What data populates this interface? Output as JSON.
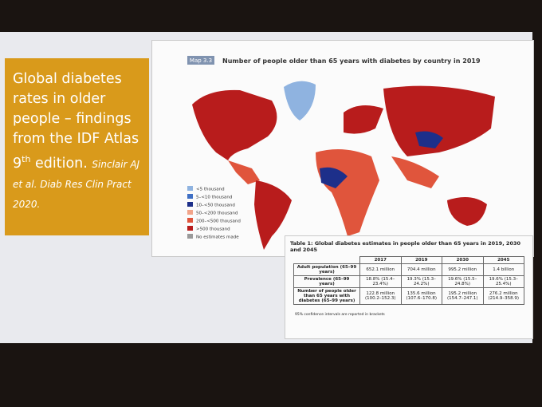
{
  "slide": {
    "heading": {
      "text_before": "Global diabetes rates in older people – findings from the IDF Atlas 9",
      "superscript": "th",
      "text_after": "edition.",
      "citation": "Sinclair AJ et al. Diab Res Clin Pract 2020."
    },
    "map": {
      "label": "Map 3.3",
      "title": "Number of people older than 65 years with diabetes by country in 2019",
      "legend": [
        {
          "text": "<5 thousand",
          "color": "#8fb3e0"
        },
        {
          "text": "5–<10 thousand",
          "color": "#3f6fc4"
        },
        {
          "text": "10–<50 thousand",
          "color": "#1d2f8a"
        },
        {
          "text": "50–<200 thousand",
          "color": "#f2a48a"
        },
        {
          "text": "200–<500 thousand",
          "color": "#e0553c"
        },
        {
          "text": ">500 thousand",
          "color": "#b81c1c"
        },
        {
          "text": "No estimates made",
          "color": "#9a9a9a"
        }
      ]
    },
    "table": {
      "title": "Table 1: Global diabetes estimates in people older than 65 years in 2019, 2030 and 2045",
      "columns": [
        "2017",
        "2019",
        "2030",
        "2045"
      ],
      "rows": [
        [
          "Adult population (65–99 years)",
          "652.1 million",
          "704.4 million",
          "995.2 million",
          "1.4 billion"
        ],
        [
          "Prevalence (65–99 years)",
          "18.8% (15.4–23.4%)",
          "19.3% (15.3–24.2%)",
          "19.6% (15.5–24.8%)",
          "19.6% (15.3–25.4%)"
        ],
        [
          "Number of people older than 65 years with diabetes (65–99 years)",
          "122.8 million (100.2–152.3)",
          "135.6 million (107.6–170.8)",
          "195.2 million (154.7–247.1)",
          "276.2 million (214.9–358.9)"
        ]
      ],
      "footnote": "95% confidence intervals are reported in brackets"
    }
  }
}
